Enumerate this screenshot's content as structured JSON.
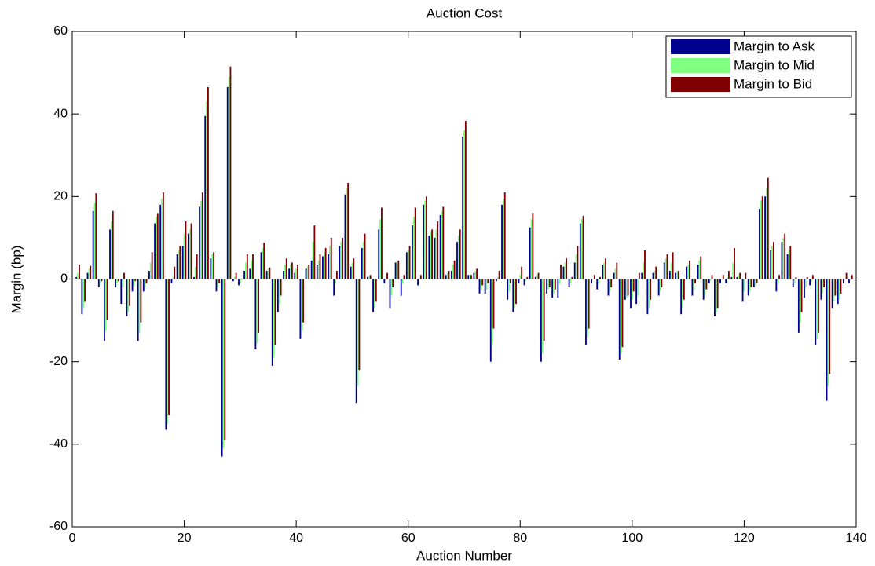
{
  "chart_data": {
    "type": "bar",
    "title": "Auction Cost",
    "x_label": "Auction Number",
    "y_label": "Margin (bp)",
    "x": [
      1,
      2,
      3,
      4,
      5,
      6,
      7,
      8,
      9,
      10,
      11,
      12,
      13,
      14,
      15,
      16,
      17,
      18,
      19,
      20,
      21,
      22,
      23,
      24,
      25,
      26,
      27,
      28,
      29,
      30,
      31,
      32,
      33,
      34,
      35,
      36,
      37,
      38,
      39,
      40,
      41,
      42,
      43,
      44,
      45,
      46,
      47,
      48,
      49,
      50,
      51,
      52,
      53,
      54,
      55,
      56,
      57,
      58,
      59,
      60,
      61,
      62,
      63,
      64,
      65,
      66,
      67,
      68,
      69,
      70,
      71,
      72,
      73,
      74,
      75,
      76,
      77,
      78,
      79,
      80,
      81,
      82,
      83,
      84,
      85,
      86,
      87,
      88,
      89,
      90,
      91,
      92,
      93,
      94,
      95,
      96,
      97,
      98,
      99,
      100,
      101,
      102,
      103,
      104,
      105,
      106,
      107,
      108,
      109,
      110,
      111,
      112,
      113,
      114,
      115,
      116,
      117,
      118,
      119,
      120,
      121,
      122,
      123,
      124,
      125,
      126,
      127,
      128,
      129,
      130,
      131,
      132,
      133,
      134,
      135,
      136,
      137,
      138,
      139
    ],
    "series": [
      {
        "name": "Margin to Ask",
        "color": "#00008f",
        "values": [
          0.5,
          -8.5,
          1.5,
          16.5,
          -2,
          -15,
          12,
          -2,
          -6,
          -9,
          -3,
          -15,
          -3,
          2,
          13.5,
          18,
          -36.5,
          -1,
          6,
          8,
          11,
          0.5,
          17.5,
          39.5,
          5,
          -3,
          -43,
          46.5,
          -0.5,
          -1.5,
          2,
          2.5,
          -17,
          6.5,
          2,
          -21,
          -8,
          2,
          2.5,
          1.5,
          -14.5,
          2.5,
          4.5,
          3.5,
          5.5,
          6,
          -4,
          8,
          20.5,
          3,
          -30,
          7.5,
          0.5,
          -8,
          12,
          -1,
          -7,
          4,
          -4,
          6.5,
          13,
          -1.5,
          18,
          10.5,
          10,
          15.5,
          1,
          2,
          9,
          34.5,
          1,
          1.5,
          -3.5,
          -3.5,
          -20,
          -0.5,
          18,
          -5,
          -8,
          -1,
          -1.5,
          12.5,
          0.5,
          -20,
          -3.5,
          -4.5,
          -4.5,
          3,
          -2,
          4,
          13.5,
          -16,
          -1,
          -2.5,
          3.5,
          -4,
          1.5,
          -19.5,
          -5,
          -7,
          -6,
          1.5,
          -8.5,
          1.5,
          -4,
          4,
          2,
          1.5,
          -8.5,
          3,
          -4,
          3.5,
          -5,
          -1,
          -9,
          -1,
          -1,
          0.5,
          0.5,
          -5.5,
          -4,
          -2,
          17,
          20,
          7,
          -3,
          9,
          6,
          -2,
          -13,
          -4.5,
          -1.5,
          -16,
          -5,
          -29.5,
          -7,
          -6,
          -1,
          -1
        ]
      },
      {
        "name": "Margin to Mid",
        "color": "#80ff80",
        "values": [
          1.5,
          -7,
          2.5,
          18.5,
          -1,
          -12.5,
          14,
          -1,
          -2,
          -8,
          -1.5,
          -13,
          -2,
          4,
          15,
          19.5,
          -35,
          0.5,
          7,
          11,
          12,
          3,
          19,
          43,
          6,
          -2,
          -41,
          49,
          0.5,
          -1,
          4,
          4.5,
          -15.5,
          7.5,
          2.5,
          -19,
          -6,
          3.5,
          3.5,
          2.5,
          -12.5,
          3,
          9,
          4.5,
          6.5,
          8,
          -1,
          9,
          22,
          4,
          -26,
          9,
          0.8,
          -7,
          14.5,
          0,
          -4,
          4.2,
          -1,
          7,
          15,
          0,
          19,
          11.5,
          12,
          16.5,
          1.5,
          3.5,
          10.5,
          36,
          1,
          2,
          -2.5,
          -2.5,
          -16,
          0.5,
          19.5,
          -3,
          -7,
          1,
          -0.5,
          14.5,
          1,
          -18,
          -2.5,
          -3.5,
          -1,
          4,
          -1,
          6,
          14.5,
          -14,
          0,
          -1,
          4,
          -3,
          2.5,
          -18,
          -4.5,
          -5,
          -4,
          4,
          -7,
          2,
          -3,
          5,
          4,
          1.8,
          -7,
          3.5,
          -2.5,
          4.5,
          -4,
          -0.5,
          -8,
          0,
          0.5,
          4,
          1,
          -3,
          -3,
          -1.5,
          19,
          22,
          8,
          -1,
          10,
          7,
          -1,
          -10.5,
          -2,
          -0.5,
          -14.5,
          -3.5,
          -26,
          -5.5,
          -5,
          0,
          0
        ]
      },
      {
        "name": "Margin to Bid",
        "color": "#800000",
        "values": [
          3.5,
          -5.5,
          3.2,
          20.8,
          -0.5,
          -10,
          16.5,
          -0.5,
          1.5,
          -6.5,
          -0.5,
          -10.5,
          -1,
          6.5,
          16,
          21,
          -33,
          3,
          8,
          14,
          13.5,
          6,
          21,
          46.5,
          6.5,
          -1,
          -39,
          51.5,
          1.5,
          0,
          6,
          6,
          -13,
          8.8,
          2.8,
          -16,
          -4,
          5,
          4,
          3.5,
          -10.5,
          3.5,
          13,
          6,
          7.5,
          10,
          2,
          10,
          23.3,
          5,
          -22,
          11,
          1,
          -5.5,
          17.3,
          1.5,
          -2,
          4.5,
          1,
          8,
          17.3,
          1,
          20,
          12,
          14,
          17.5,
          2,
          4.5,
          12,
          38.3,
          1,
          2.5,
          -1.5,
          -1,
          -12,
          2,
          21,
          -1,
          -6,
          3,
          0.5,
          16,
          1.5,
          -15,
          -2,
          -2.5,
          3.5,
          5,
          0.5,
          8,
          15.3,
          -12,
          1,
          0.5,
          5,
          -2,
          4,
          -16.5,
          -4,
          -3,
          1.5,
          7,
          -5,
          3,
          -2,
          6,
          6.5,
          2,
          -5,
          4.5,
          -1,
          5.5,
          -2.5,
          1,
          -7,
          1,
          2,
          7.5,
          1.5,
          1.5,
          -2,
          -1,
          20,
          24.5,
          9,
          1,
          11,
          8,
          0.5,
          -8,
          0.5,
          1,
          -13,
          -2,
          -23,
          -4,
          -3.5,
          1.5,
          1
        ]
      }
    ],
    "xlim": [
      0,
      140
    ],
    "xticks": [
      0,
      20,
      40,
      60,
      80,
      100,
      120,
      140
    ],
    "ylim": [
      -60,
      60
    ],
    "yticks": [
      -60,
      -40,
      -20,
      0,
      20,
      40,
      60
    ],
    "legend": "upper right"
  }
}
